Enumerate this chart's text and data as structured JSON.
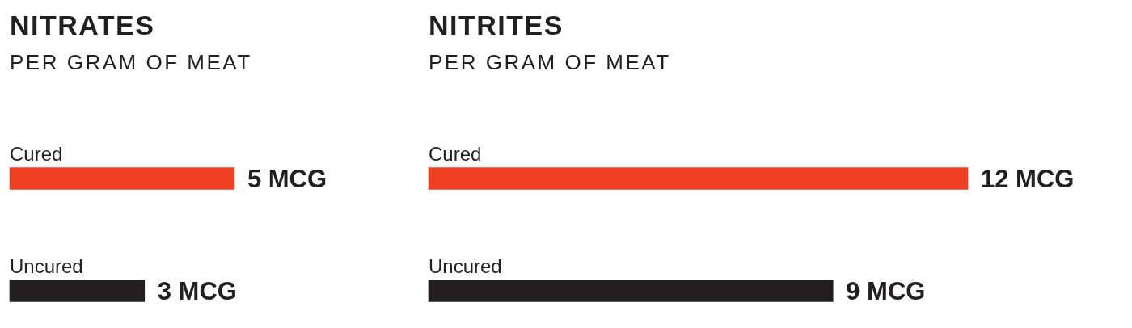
{
  "chart_data": [
    {
      "type": "bar",
      "orientation": "horizontal",
      "title": "NITRATES",
      "subtitle": "PER GRAM OF MEAT",
      "categories": [
        "Cured",
        "Uncured"
      ],
      "values": [
        5,
        3
      ],
      "colors": [
        "#f04024",
        "#231f20"
      ],
      "value_labels": [
        "5 MCG",
        "3 MCG"
      ],
      "tick_labels": false
    },
    {
      "type": "bar",
      "orientation": "horizontal",
      "title": "NITRITES",
      "subtitle": "PER GRAM OF MEAT",
      "categories": [
        "Cured",
        "Uncured"
      ],
      "values": [
        12,
        9
      ],
      "colors": [
        "#f04024",
        "#231f20"
      ],
      "value_labels": [
        "12 MCG",
        "9 MCG"
      ],
      "tick_labels": false
    }
  ]
}
